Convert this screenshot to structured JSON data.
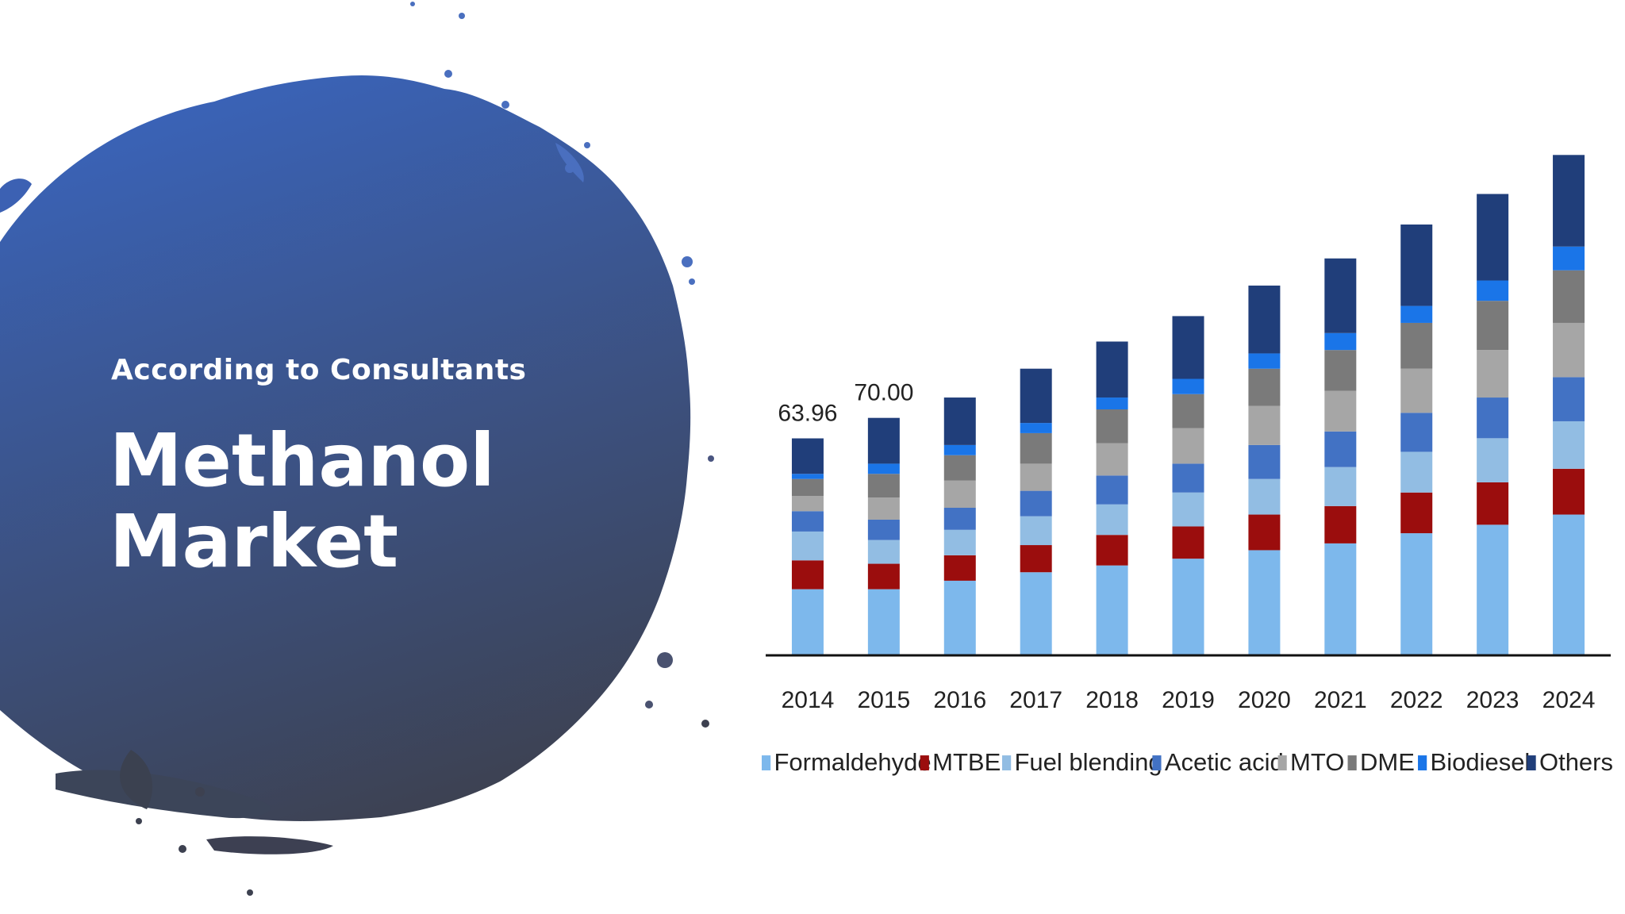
{
  "slide": {
    "subtitle": "According to Consultants",
    "title_line1": "Methanol",
    "title_line2": "Market",
    "blob_color_top": "#3a63b8",
    "blob_color_bottom": "#3d4150"
  },
  "chart_data": {
    "type": "bar",
    "stacked": true,
    "categories": [
      "2014",
      "2015",
      "2016",
      "2017",
      "2018",
      "2019",
      "2020",
      "2021",
      "2022",
      "2023",
      "2024"
    ],
    "data_labels": [
      {
        "category": "2014",
        "text": "63.96"
      },
      {
        "category": "2015",
        "text": "70.00"
      }
    ],
    "series": [
      {
        "name": "Formaldehyde",
        "color": "#7db8ec",
        "values": [
          19.5,
          19.5,
          22.0,
          24.5,
          26.5,
          28.5,
          31.0,
          33.0,
          36.0,
          38.5,
          41.5
        ]
      },
      {
        "name": "MTBE",
        "color": "#9b0d0d",
        "values": [
          8.5,
          7.5,
          7.5,
          8.0,
          9.0,
          9.5,
          10.5,
          11.0,
          12.0,
          12.5,
          13.5
        ]
      },
      {
        "name": "Fuel blending",
        "color": "#92bde3",
        "values": [
          8.5,
          7.0,
          7.5,
          8.5,
          9.0,
          10.0,
          10.5,
          11.5,
          12.0,
          13.0,
          14.0
        ]
      },
      {
        "name": "Acetic acid",
        "color": "#4272c4",
        "values": [
          6.0,
          6.0,
          6.5,
          7.5,
          8.5,
          8.5,
          10.0,
          10.5,
          11.5,
          12.0,
          13.0
        ]
      },
      {
        "name": "MTO",
        "color": "#a6a6a6",
        "values": [
          4.5,
          6.5,
          8.0,
          8.0,
          9.5,
          10.5,
          11.5,
          12.0,
          13.0,
          14.0,
          16.0
        ]
      },
      {
        "name": "DME",
        "color": "#7a7a7a",
        "values": [
          5.0,
          7.0,
          7.5,
          9.0,
          10.0,
          10.0,
          11.0,
          12.0,
          13.5,
          14.5,
          15.5
        ]
      },
      {
        "name": "Biodiesel",
        "color": "#1a75e8",
        "values": [
          1.5,
          3.0,
          3.0,
          3.0,
          3.5,
          4.5,
          4.5,
          5.0,
          5.0,
          6.0,
          7.0
        ]
      },
      {
        "name": "Others",
        "color": "#203e7a",
        "values": [
          10.46,
          13.5,
          14.0,
          16.0,
          16.5,
          18.5,
          20.0,
          22.0,
          24.0,
          25.5,
          27.0
        ]
      }
    ],
    "ylim": [
      0,
      145
    ],
    "grid": false,
    "legend_position": "bottom"
  }
}
